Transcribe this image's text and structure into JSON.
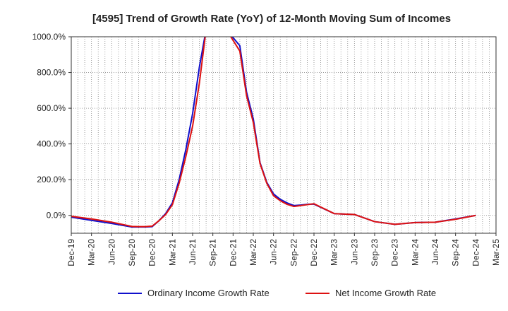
{
  "chart_data": {
    "type": "line",
    "title": "[4595]  Trend of Growth Rate (YoY) of 12-Month Moving Sum of Incomes",
    "xlabel": "",
    "ylabel": "",
    "ylim": [
      -100,
      1000
    ],
    "yticks": [
      0,
      200,
      400,
      600,
      800,
      1000
    ],
    "ytick_labels": [
      "0.0%",
      "200.0%",
      "400.0%",
      "600.0%",
      "800.0%",
      "1000.0%"
    ],
    "xtick_labels": [
      "Dec-19",
      "Mar-20",
      "Jun-20",
      "Sep-20",
      "Dec-20",
      "Mar-21",
      "Jun-21",
      "Sep-21",
      "Dec-21",
      "Mar-22",
      "Jun-22",
      "Sep-22",
      "Dec-22",
      "Mar-23",
      "Jun-23",
      "Sep-23",
      "Dec-23",
      "Mar-24",
      "Jun-24",
      "Sep-24",
      "Dec-24",
      "Mar-25"
    ],
    "grid": true,
    "legend_position": "bottom",
    "series": [
      {
        "name": "Ordinary Income Growth Rate",
        "color": "#1010cc",
        "points": [
          [
            "Dec-19",
            -10
          ],
          [
            "Mar-20",
            -28
          ],
          [
            "Jun-20",
            -45
          ],
          [
            "Sep-20",
            -65
          ],
          [
            "Oct-20",
            -65
          ],
          [
            "Nov-20",
            -65
          ],
          [
            "Dec-20",
            -63
          ],
          [
            "Jan-21",
            -30
          ],
          [
            "Feb-21",
            10
          ],
          [
            "Mar-21",
            70
          ],
          [
            "Apr-21",
            200
          ],
          [
            "May-21",
            370
          ],
          [
            "Jun-21",
            570
          ],
          [
            "Jul-21",
            830
          ],
          [
            "Aug-21",
            1040
          ],
          [
            "Nov-21",
            1040
          ],
          [
            "Jan-22",
            950
          ],
          [
            "Feb-22",
            690
          ],
          [
            "Mar-22",
            540
          ],
          [
            "Apr-22",
            295
          ],
          [
            "May-22",
            185
          ],
          [
            "Jun-22",
            120
          ],
          [
            "Jul-22",
            90
          ],
          [
            "Aug-22",
            70
          ],
          [
            "Sep-22",
            55
          ],
          [
            "Oct-22",
            58
          ],
          [
            "Nov-22",
            62
          ],
          [
            "Dec-22",
            63
          ],
          [
            "Mar-23",
            10
          ],
          [
            "Jun-23",
            5
          ],
          [
            "Sep-23",
            -35
          ],
          [
            "Dec-23",
            -50
          ],
          [
            "Mar-24",
            -40
          ],
          [
            "Jun-24",
            -38
          ],
          [
            "Sep-24",
            -20
          ],
          [
            "Dec-24",
            0
          ]
        ]
      },
      {
        "name": "Net Income Growth Rate",
        "color": "#dd1111",
        "points": [
          [
            "Dec-19",
            -5
          ],
          [
            "Mar-20",
            -20
          ],
          [
            "Jun-20",
            -38
          ],
          [
            "Sep-20",
            -62
          ],
          [
            "Oct-20",
            -63
          ],
          [
            "Nov-20",
            -63
          ],
          [
            "Dec-20",
            -60
          ],
          [
            "Jan-21",
            -30
          ],
          [
            "Feb-21",
            5
          ],
          [
            "Mar-21",
            60
          ],
          [
            "Apr-21",
            180
          ],
          [
            "May-21",
            330
          ],
          [
            "Jun-21",
            500
          ],
          [
            "Jul-21",
            740
          ],
          [
            "Aug-21",
            1040
          ],
          [
            "Nov-21",
            1040
          ],
          [
            "Jan-22",
            920
          ],
          [
            "Feb-22",
            670
          ],
          [
            "Mar-22",
            520
          ],
          [
            "Apr-22",
            290
          ],
          [
            "May-22",
            180
          ],
          [
            "Jun-22",
            110
          ],
          [
            "Jul-22",
            82
          ],
          [
            "Aug-22",
            62
          ],
          [
            "Sep-22",
            50
          ],
          [
            "Oct-22",
            55
          ],
          [
            "Nov-22",
            60
          ],
          [
            "Dec-22",
            65
          ],
          [
            "Mar-23",
            10
          ],
          [
            "Jun-23",
            5
          ],
          [
            "Sep-23",
            -35
          ],
          [
            "Dec-23",
            -50
          ],
          [
            "Mar-24",
            -40
          ],
          [
            "Jun-24",
            -38
          ],
          [
            "Sep-24",
            -22
          ],
          [
            "Dec-24",
            0
          ]
        ]
      }
    ]
  }
}
